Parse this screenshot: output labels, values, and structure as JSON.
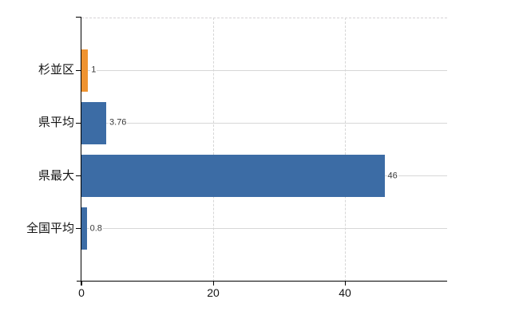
{
  "chart_data": {
    "type": "bar",
    "orientation": "horizontal",
    "title": "",
    "categories": [
      "杉並区",
      "県平均",
      "県最大",
      "全国平均"
    ],
    "values": [
      1,
      3.76,
      46,
      0.8
    ],
    "value_labels": [
      "1",
      "3.76",
      "46",
      "0.8"
    ],
    "series": [
      {
        "name": "value",
        "values": [
          1,
          3.76,
          46,
          0.8
        ]
      }
    ],
    "bar_colors": [
      "#ef9330",
      "#3c6ca5",
      "#3c6ca5",
      "#3c6ca5"
    ],
    "x_ticks": [
      0,
      20,
      40
    ],
    "x_tick_labels": [
      "0",
      "20",
      "40"
    ],
    "xlim": [
      0,
      55.5
    ],
    "grid": true,
    "legend": false,
    "colors": {
      "highlight_bar": "#ef9330",
      "default_bar": "#3c6ca5",
      "gridline": "#d7d7d7",
      "axis": "#000000",
      "background": "#ffffff"
    }
  }
}
